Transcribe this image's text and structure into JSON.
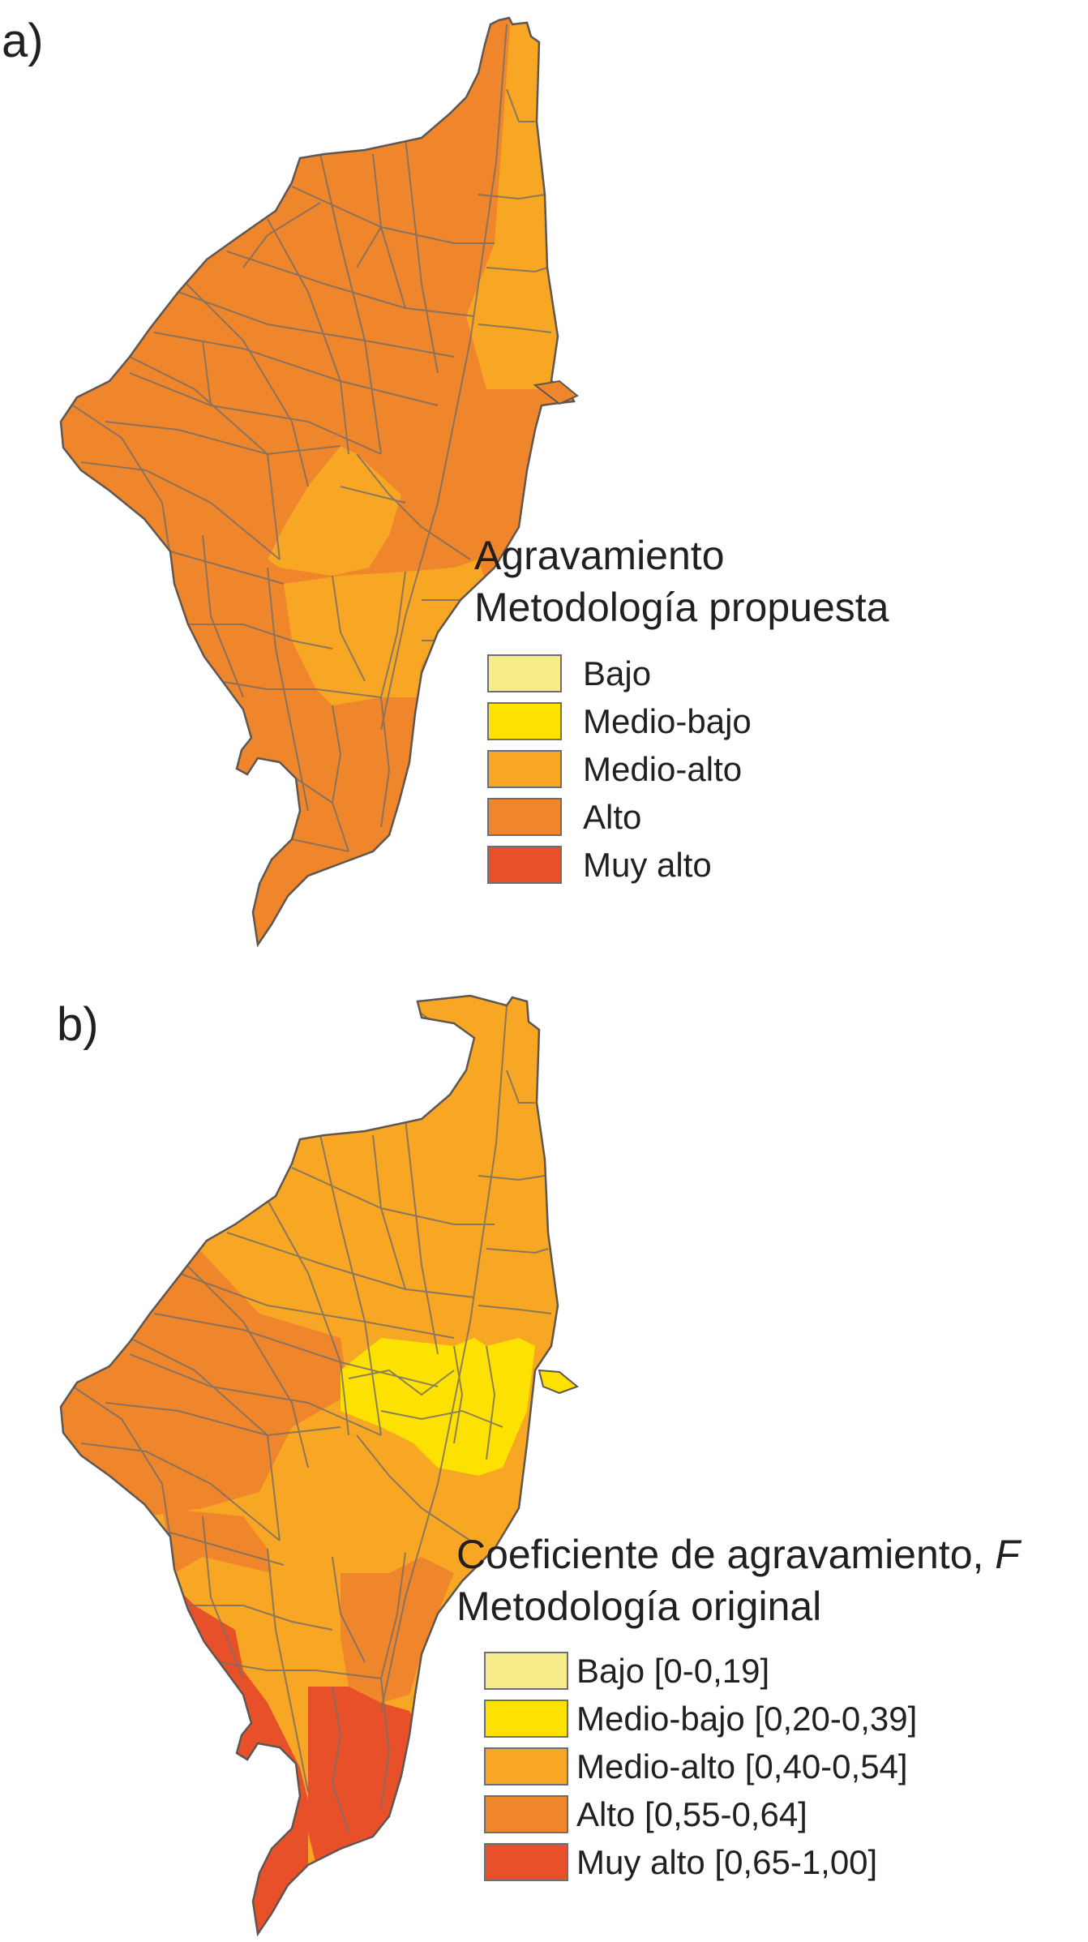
{
  "panels": [
    {
      "id": "a",
      "label": "a)",
      "legend": {
        "title_line1": "Agravamiento",
        "title_line2": "Metodología propuesta",
        "items": [
          {
            "label": "Bajo",
            "color": "#f6ec8a"
          },
          {
            "label": "Medio-bajo",
            "color": "#fde100"
          },
          {
            "label": "Medio-alto",
            "color": "#f8a724"
          },
          {
            "label": "Alto",
            "color": "#f0862c"
          },
          {
            "label": "Muy alto",
            "color": "#e8502a"
          }
        ]
      },
      "dominant_class": "Alto",
      "central_class": "Medio-alto"
    },
    {
      "id": "b",
      "label": "b)",
      "legend": {
        "title_line1_text": "Coeficiente de agravamiento, ",
        "title_line1_var": "F",
        "title_line2": "Metodología original",
        "items": [
          {
            "label": "Bajo [0-0,19]",
            "color": "#f6ec8a"
          },
          {
            "label": "Medio-bajo [0,20-0,39]",
            "color": "#fde100"
          },
          {
            "label": "Medio-alto [0,40-0,54]",
            "color": "#f8a724"
          },
          {
            "label": "Alto [0,55-0,64]",
            "color": "#f0862c"
          },
          {
            "label": "Muy alto [0,65-1,00]",
            "color": "#e8502a"
          }
        ]
      },
      "regions": [
        {
          "class": "Medio-alto",
          "area": "north and east"
        },
        {
          "class": "Alto",
          "area": "west"
        },
        {
          "class": "Medio-bajo",
          "area": "centre-east"
        },
        {
          "class": "Muy alto",
          "area": "south"
        }
      ]
    }
  ],
  "colors": {
    "border": "#7a6f66",
    "outline": "#5e5650"
  }
}
